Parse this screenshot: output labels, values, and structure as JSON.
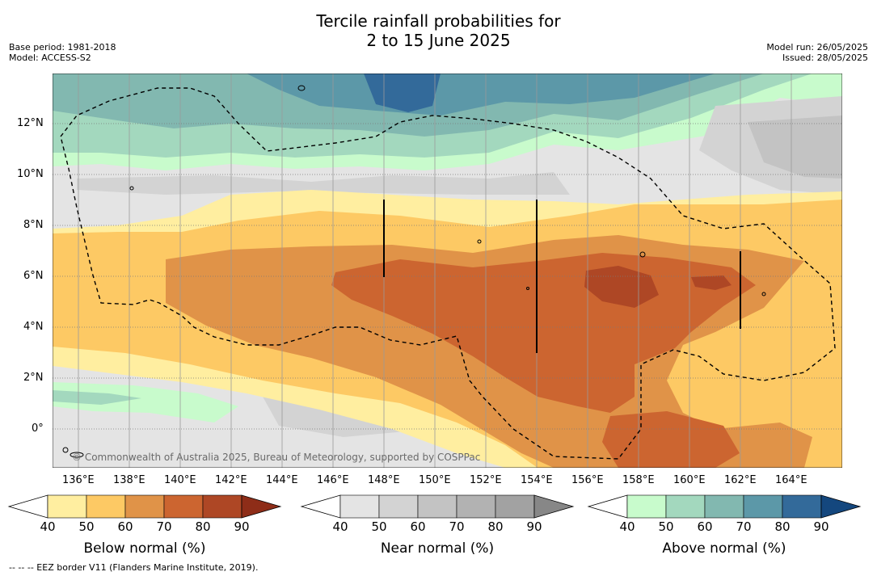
{
  "header": {
    "title_line1": "Tercile rainfall probabilities for",
    "title_line2": "2 to 15 June 2025",
    "base_period": "Base period: 1981-2018",
    "model": "Model: ACCESS-S2",
    "model_run": "Model run: 26/05/2025",
    "issued": "Issued: 28/05/2025"
  },
  "map": {
    "lon_ticks": [
      "136°E",
      "138°E",
      "140°E",
      "142°E",
      "144°E",
      "146°E",
      "148°E",
      "150°E",
      "152°E",
      "154°E",
      "156°E",
      "158°E",
      "160°E",
      "162°E",
      "164°E"
    ],
    "lat_ticks": [
      "12°N",
      "10°N",
      "8°N",
      "6°N",
      "4°N",
      "2°N",
      "0°"
    ],
    "copyright": "© Commonwealth of Australia 2025, Bureau of Meteorology, supported by COSPPac"
  },
  "colorbars": [
    {
      "label": "Below normal (%)",
      "ticks": [
        "40",
        "50",
        "60",
        "70",
        "80",
        "90"
      ],
      "colors": [
        "#ffeea0",
        "#fdc964",
        "#e09348",
        "#cc6530",
        "#ae4725",
        "#8e2d18"
      ]
    },
    {
      "label": "Near normal (%)",
      "ticks": [
        "40",
        "50",
        "60",
        "70",
        "80",
        "90"
      ],
      "colors": [
        "#e4e4e4",
        "#d3d3d3",
        "#c3c3c3",
        "#b2b2b2",
        "#a2a2a2",
        "#878787"
      ]
    },
    {
      "label": "Above normal (%)",
      "ticks": [
        "40",
        "50",
        "60",
        "70",
        "80",
        "90"
      ],
      "colors": [
        "#c8fbcc",
        "#a3d8be",
        "#82b8b0",
        "#5c98a8",
        "#336a9a",
        "#14477e"
      ]
    }
  ],
  "footnote": "--  --  -- EEZ border V11 (Flanders Marine Institute, 2019)."
}
